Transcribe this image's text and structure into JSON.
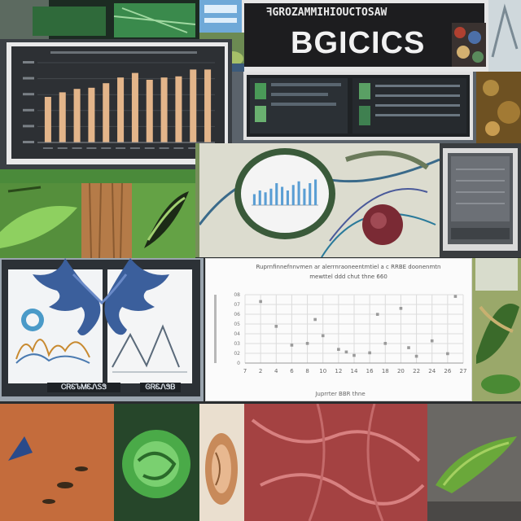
{
  "banner": {
    "top_text": "ꟻGROZAMMIHIOUCTOSAW",
    "main_text": "BGICICS"
  },
  "charts": [
    {
      "type": "bar",
      "values": [
        40,
        44,
        47,
        48,
        52,
        57,
        61,
        55,
        57,
        58,
        64,
        64
      ]
    },
    {
      "type": "bar",
      "values": [
        6,
        8,
        7,
        9,
        12,
        10,
        8,
        11,
        13,
        9,
        12,
        14
      ]
    },
    {
      "type": "scatter",
      "title": "Ruprnfinnefnnvmen ar alerrnraoneentmtiel a c RRBE doonenmtn",
      "subtitle": "mewttel ddd chut thne 660",
      "xlabel": "Juprrter BBR thne",
      "x_ticks": [
        "7",
        "2",
        "4",
        "6",
        "8",
        "10",
        "12",
        "14",
        "16",
        "18",
        "20",
        "22",
        "24",
        "26",
        "27"
      ],
      "y_ticks": [
        "0",
        "02",
        "03",
        "04",
        "05",
        "06",
        "07",
        "08"
      ],
      "points": [
        [
          2,
          7.2
        ],
        [
          4,
          4.3
        ],
        [
          6,
          2.1
        ],
        [
          8,
          2.3
        ],
        [
          9,
          5.1
        ],
        [
          10,
          3.2
        ],
        [
          12,
          1.6
        ],
        [
          13,
          1.3
        ],
        [
          14,
          0.9
        ],
        [
          16,
          1.2
        ],
        [
          17,
          5.7
        ],
        [
          18,
          2.3
        ],
        [
          20,
          6.4
        ],
        [
          21,
          1.8
        ],
        [
          22,
          0.8
        ],
        [
          24,
          2.6
        ],
        [
          26,
          1.1
        ],
        [
          27,
          7.8
        ]
      ]
    }
  ],
  "slides": {
    "label_left": "ᏟᏒᏋᏖᎷᏋᏁᏚᏕ",
    "label_right": "ᎶᏒᏋᏁᏕᏴ"
  }
}
